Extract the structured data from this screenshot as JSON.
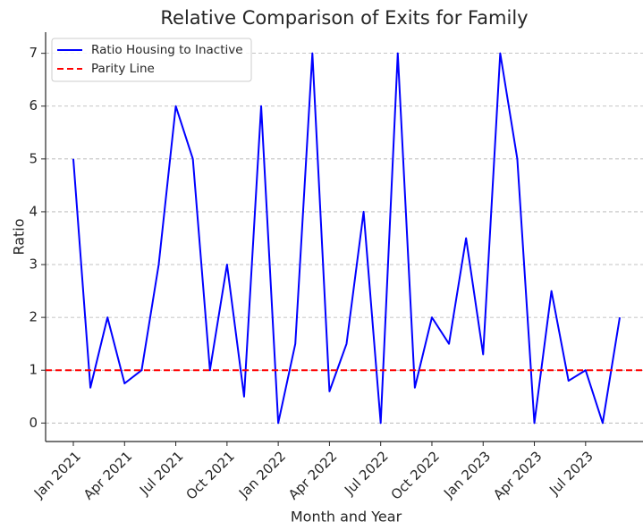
{
  "chart_data": {
    "type": "line",
    "title": "Relative Comparison of Exits for Family",
    "x_label": "Month and Year",
    "y_label": "Ratio",
    "categories": [
      "Jan 2021",
      null,
      null,
      "Apr 2021",
      null,
      null,
      "Jul 2021",
      null,
      null,
      "Oct 2021",
      null,
      null,
      "Jan 2022",
      null,
      null,
      "Apr 2022",
      null,
      null,
      "Jul 2022",
      null,
      null,
      "Oct 2022",
      null,
      null,
      "Jan 2023",
      null,
      null,
      "Apr 2023",
      null,
      null,
      "Jul 2023",
      null,
      null
    ],
    "series": [
      {
        "name": "Ratio Housing to Inactive",
        "color": "#0000ff",
        "values": [
          5,
          0.67,
          2,
          0.75,
          1,
          3,
          6,
          5,
          1,
          3,
          0.5,
          6,
          0,
          1.5,
          7,
          0.6,
          1.5,
          4,
          0,
          7,
          0.67,
          2,
          1.5,
          3.5,
          1.3,
          7,
          5,
          0,
          2.5,
          0.8,
          1,
          0,
          2
        ]
      }
    ],
    "reference_line": {
      "name": "Parity Line",
      "value": 1,
      "color": "#ff0000"
    },
    "ylim": [
      -0.35,
      7.4
    ],
    "yticks": [
      0,
      1,
      2,
      3,
      4,
      5,
      6,
      7
    ],
    "grid": true,
    "legend": "upper left"
  }
}
